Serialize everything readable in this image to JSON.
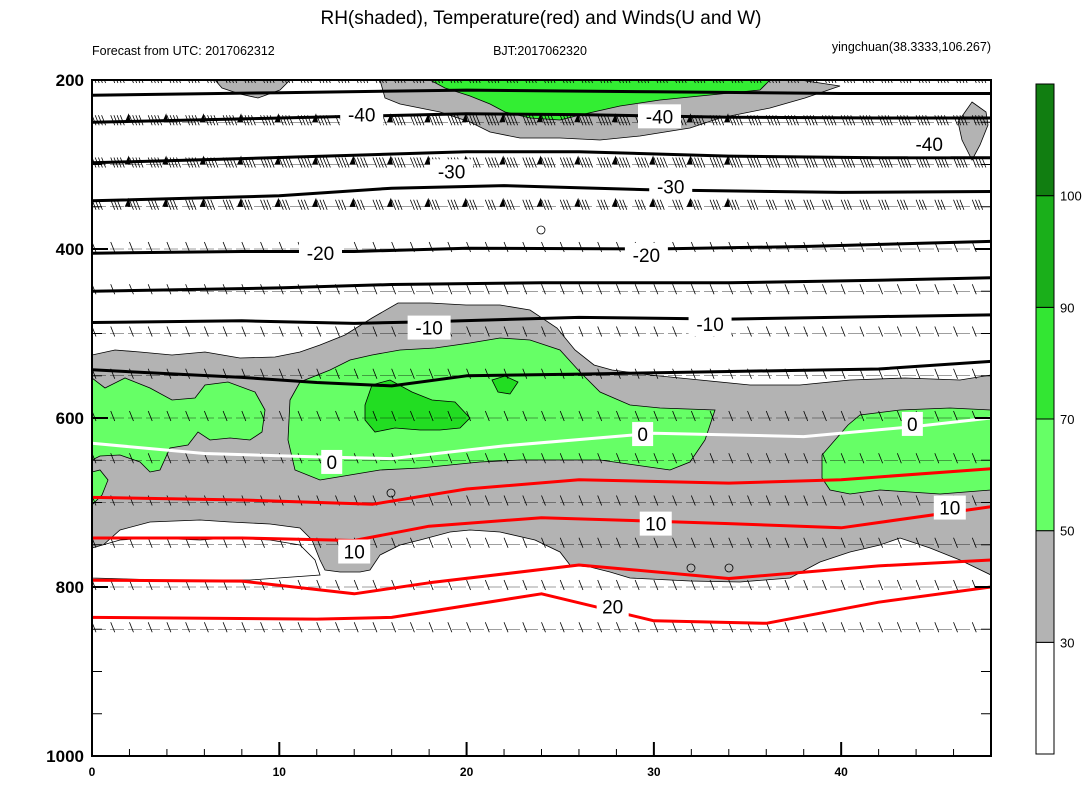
{
  "chart_data": {
    "type": "heatmap",
    "title": "RH(shaded), Temperature(red) and Winds(U and W)",
    "left_string": "Forecast from UTC: 2017062312",
    "center_string": "BJT:2017062320",
    "right_string": "yingchuan(38.3333,106.267)",
    "x_range": [
      0,
      48
    ],
    "x_ticks": [
      0,
      10,
      20,
      30,
      40
    ],
    "x_tick_labels": [
      "0",
      "10",
      "20",
      "30",
      "40"
    ],
    "y_range": [
      1000,
      200
    ],
    "y_ticks": [
      200,
      400,
      600,
      800,
      1000
    ],
    "y_tick_labels": [
      "200",
      "400",
      "600",
      "800",
      "1000"
    ],
    "wind_levels": [
      200,
      250,
      300,
      350,
      400,
      450,
      500,
      550,
      600,
      650,
      700,
      750,
      800,
      850
    ],
    "colorbar": {
      "levels": [
        30,
        50,
        70,
        90,
        100
      ],
      "labels": [
        "30",
        "50",
        "70",
        "90",
        "100"
      ],
      "colors": [
        "#ffffff",
        "#b3b3b3",
        "#66ff66",
        "#33e633",
        "#1aaf1a",
        "#117e11"
      ]
    },
    "shading_colors": {
      "gray": "#b3b3b3",
      "light_green": "#66ff66",
      "green": "#22dd22"
    },
    "temperature_contours": [
      {
        "value": -40,
        "color": "#000000",
        "points": [
          [
            0,
            250
          ],
          [
            8,
            246
          ],
          [
            14,
            243
          ],
          [
            20,
            240
          ],
          [
            26,
            241
          ],
          [
            34,
            244
          ],
          [
            42,
            245
          ],
          [
            48,
            245
          ]
        ]
      },
      {
        "value": -40,
        "color": "#000000",
        "points": [
          [
            0,
            218
          ],
          [
            10,
            215
          ],
          [
            20,
            212
          ],
          [
            30,
            214
          ],
          [
            40,
            216
          ],
          [
            48,
            216
          ]
        ]
      },
      {
        "value": -30,
        "color": "#000000",
        "points": [
          [
            0,
            298
          ],
          [
            8,
            293
          ],
          [
            14,
            289
          ],
          [
            20,
            285
          ],
          [
            26,
            285
          ],
          [
            34,
            290
          ],
          [
            42,
            292
          ],
          [
            48,
            292
          ]
        ]
      },
      {
        "value": -30,
        "color": "#000000",
        "points": [
          [
            0,
            343
          ],
          [
            10,
            337
          ],
          [
            16,
            328
          ],
          [
            22,
            325
          ],
          [
            30,
            330
          ],
          [
            40,
            333
          ],
          [
            48,
            332
          ]
        ]
      },
      {
        "value": -20,
        "color": "#000000",
        "points": [
          [
            0,
            405
          ],
          [
            8,
            403
          ],
          [
            14,
            403
          ],
          [
            20,
            399
          ],
          [
            30,
            400
          ],
          [
            38,
            397
          ],
          [
            48,
            391
          ]
        ]
      },
      {
        "value": -20,
        "color": "#000000",
        "points": [
          [
            0,
            450
          ],
          [
            10,
            446
          ],
          [
            16,
            442
          ],
          [
            24,
            440
          ],
          [
            34,
            440
          ],
          [
            42,
            437
          ],
          [
            48,
            434
          ]
        ]
      },
      {
        "value": -10,
        "color": "#000000",
        "points": [
          [
            0,
            487
          ],
          [
            8,
            485
          ],
          [
            14,
            488
          ],
          [
            18,
            486
          ],
          [
            26,
            481
          ],
          [
            34,
            483
          ],
          [
            42,
            480
          ],
          [
            48,
            478
          ]
        ]
      },
      {
        "value": -10,
        "color": "#000000",
        "points": [
          [
            0,
            543
          ],
          [
            8,
            552
          ],
          [
            12,
            558
          ],
          [
            16,
            562
          ],
          [
            20,
            550
          ],
          [
            26,
            548
          ],
          [
            34,
            545
          ],
          [
            42,
            542
          ],
          [
            48,
            533
          ]
        ]
      },
      {
        "value": 0,
        "color": "#ffffff",
        "points": [
          [
            0,
            630
          ],
          [
            6,
            642
          ],
          [
            12,
            646
          ],
          [
            16,
            648
          ],
          [
            22,
            633
          ],
          [
            30,
            618
          ],
          [
            38,
            622
          ],
          [
            44,
            610
          ],
          [
            48,
            600
          ]
        ]
      },
      {
        "value": 10,
        "color": "#ff0000",
        "points": [
          [
            0,
            694
          ],
          [
            8,
            697
          ],
          [
            15,
            702
          ],
          [
            20,
            684
          ],
          [
            26,
            673
          ],
          [
            34,
            677
          ],
          [
            40,
            673
          ],
          [
            48,
            660
          ]
        ]
      },
      {
        "value": 10,
        "color": "#ff0000",
        "points": [
          [
            0,
            742
          ],
          [
            8,
            742
          ],
          [
            14,
            745
          ],
          [
            18,
            728
          ],
          [
            24,
            718
          ],
          [
            34,
            725
          ],
          [
            40,
            730
          ],
          [
            48,
            705
          ]
        ]
      },
      {
        "value": 10,
        "color": "#ff0000",
        "points": [
          [
            0,
            792
          ],
          [
            8,
            793
          ],
          [
            14,
            808
          ],
          [
            18,
            795
          ],
          [
            26,
            774
          ],
          [
            34,
            790
          ],
          [
            42,
            775
          ],
          [
            48,
            768
          ]
        ]
      },
      {
        "value": 20,
        "color": "#ff0000",
        "points": [
          [
            0,
            836
          ],
          [
            12,
            838
          ],
          [
            16,
            836
          ],
          [
            24,
            808
          ],
          [
            30,
            840
          ],
          [
            36,
            843
          ],
          [
            42,
            818
          ],
          [
            48,
            800
          ]
        ]
      }
    ],
    "contour_labels": [
      {
        "text": "-40",
        "x": 14.4,
        "y": 241
      },
      {
        "text": "-40",
        "x": 30.3,
        "y": 243
      },
      {
        "text": "-40",
        "x": 44.7,
        "y": 276
      },
      {
        "text": "-30",
        "x": 19.2,
        "y": 308
      },
      {
        "text": "-30",
        "x": 30.9,
        "y": 326
      },
      {
        "text": "-20",
        "x": 12.2,
        "y": 405
      },
      {
        "text": "-20",
        "x": 29.6,
        "y": 407
      },
      {
        "text": "-10",
        "x": 18.0,
        "y": 493
      },
      {
        "text": "-10",
        "x": 33.0,
        "y": 489
      },
      {
        "text": "0",
        "x": 12.8,
        "y": 652
      },
      {
        "text": "0",
        "x": 29.4,
        "y": 619
      },
      {
        "text": "0",
        "x": 43.8,
        "y": 607
      },
      {
        "text": "10",
        "x": 30.1,
        "y": 725
      },
      {
        "text": "10",
        "x": 45.8,
        "y": 706
      },
      {
        "text": "10",
        "x": 14.0,
        "y": 758
      },
      {
        "text": "20",
        "x": 27.8,
        "y": 823
      }
    ]
  }
}
